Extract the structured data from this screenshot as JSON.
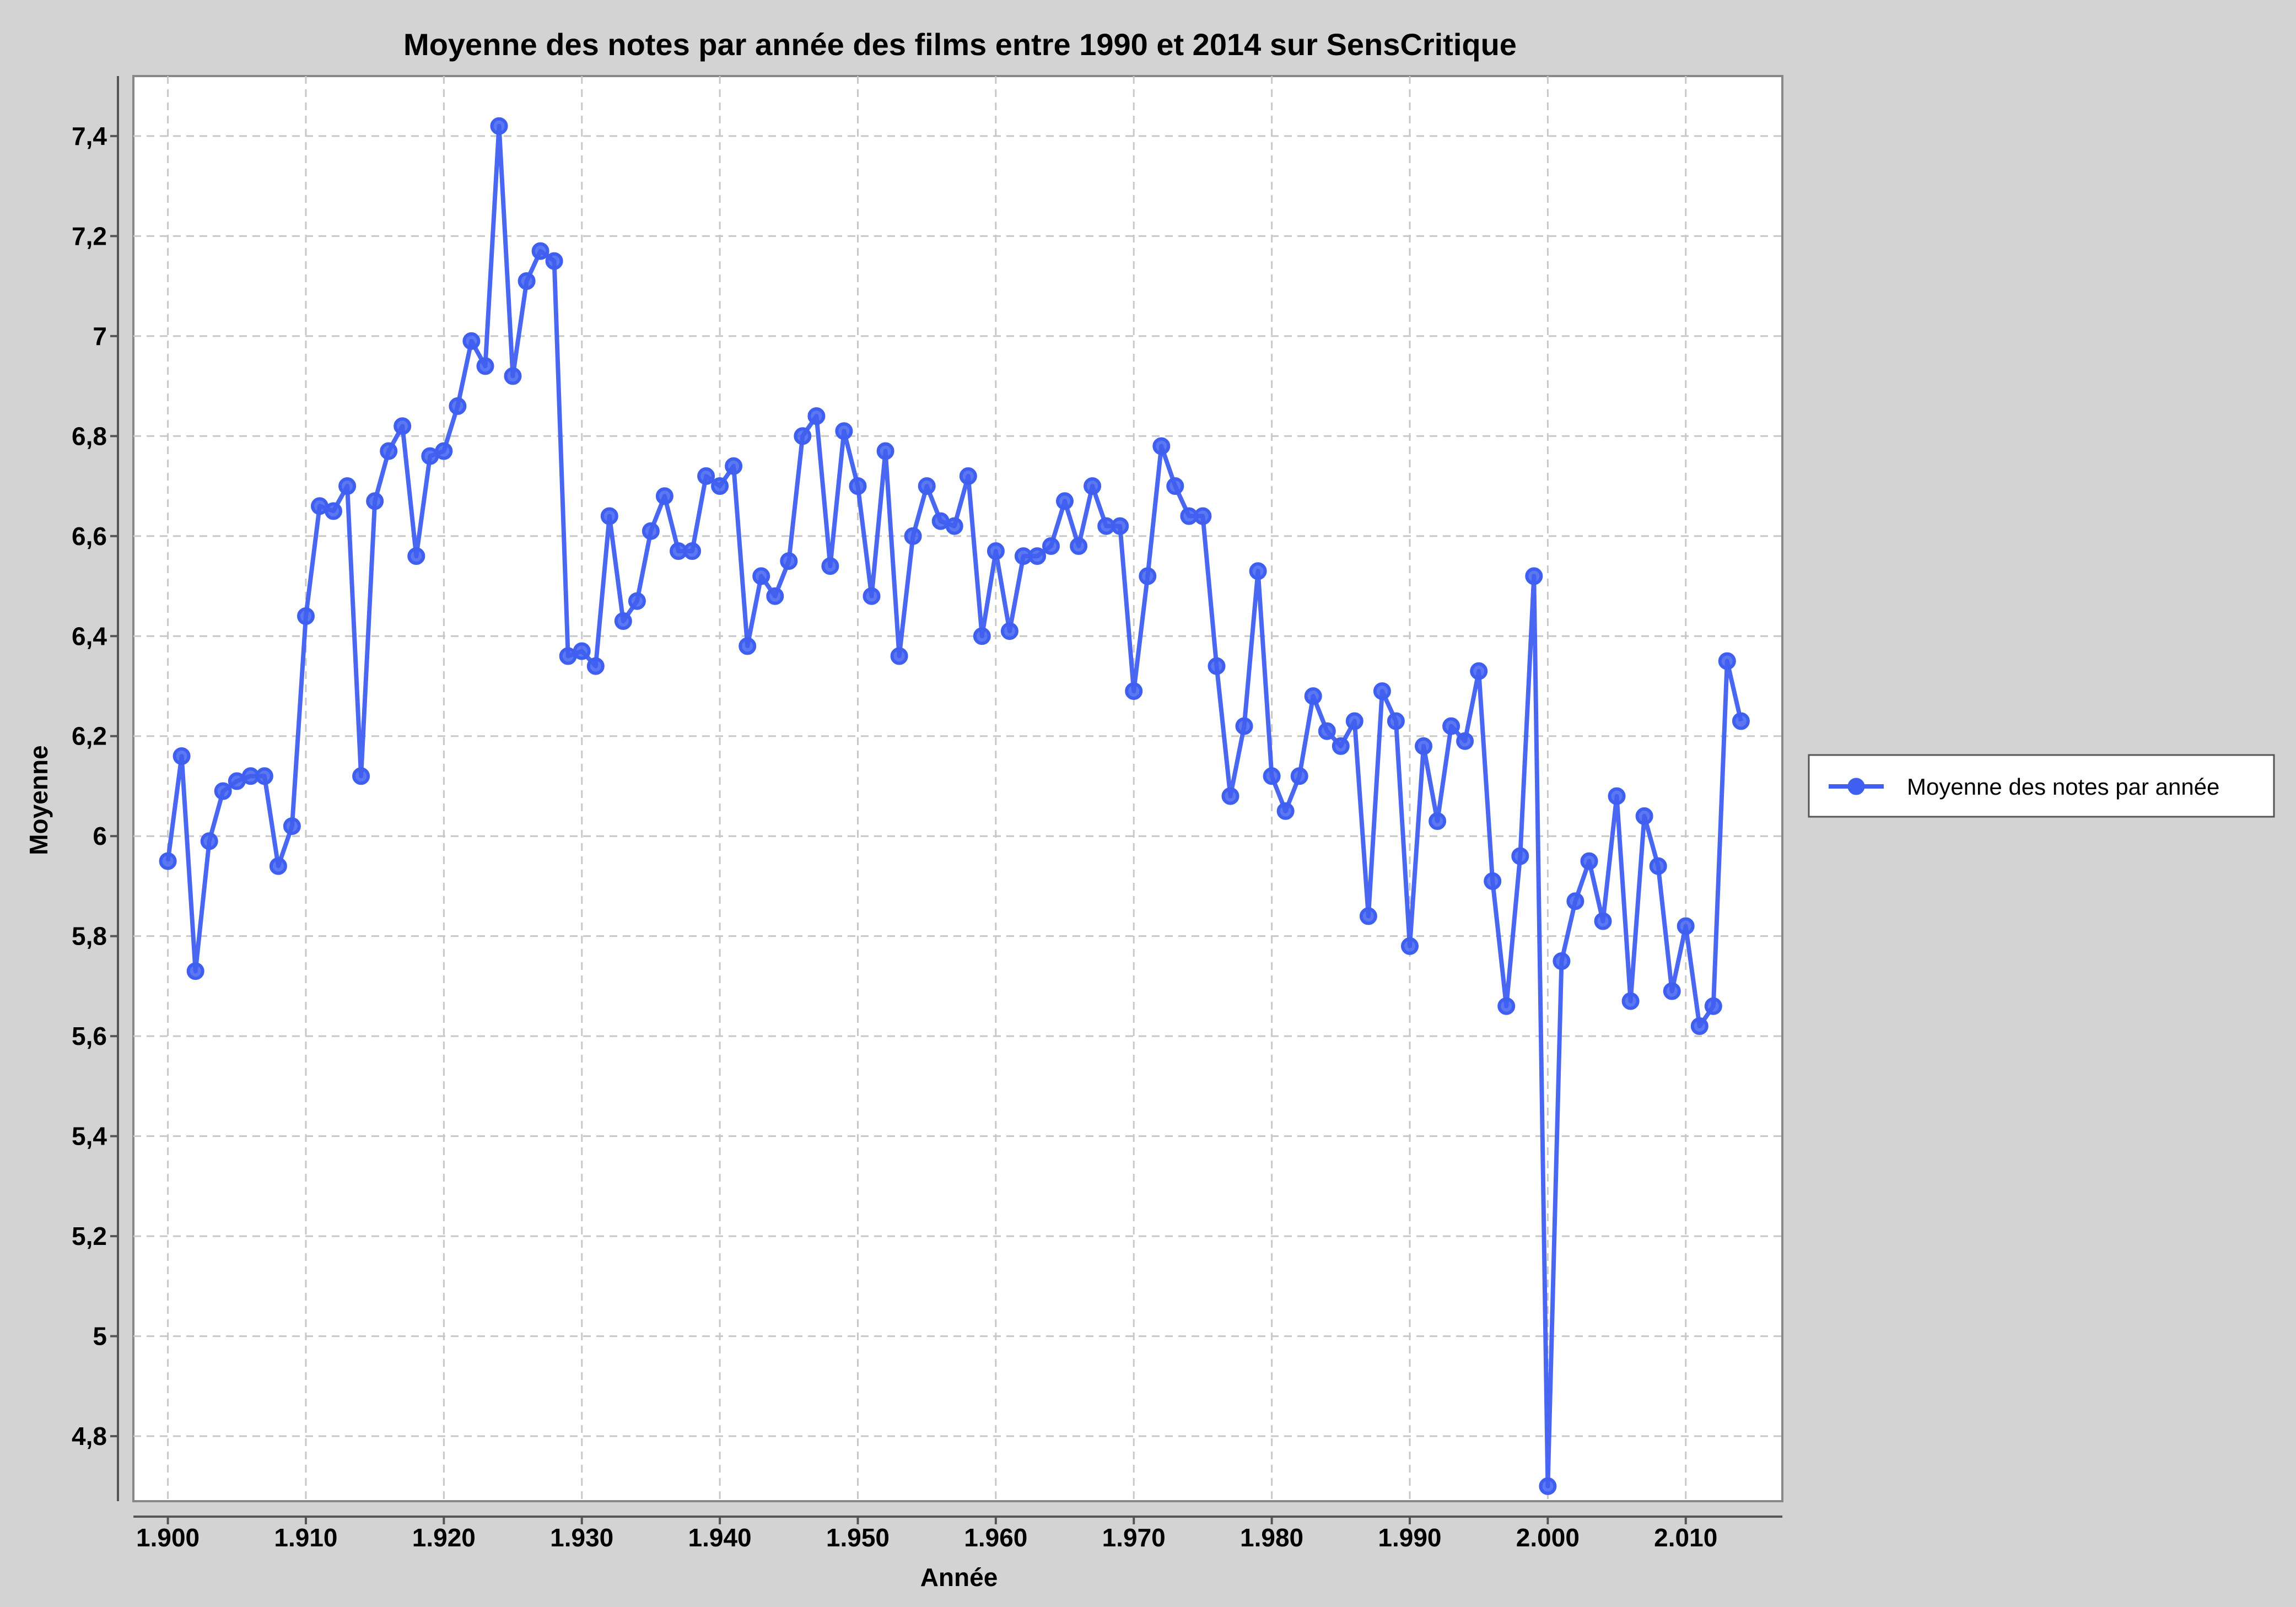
{
  "chart_data": {
    "type": "line",
    "title": "Moyenne des notes par année des films entre 1990 et 2014 sur SensCritique",
    "xlabel": "Année",
    "ylabel": "Moyenne",
    "xlim": [
      1897.5,
      2017
    ],
    "ylim": [
      4.67,
      7.52
    ],
    "grid": true,
    "legend_position": "right",
    "x_ticks": [
      1900,
      1910,
      1920,
      1930,
      1940,
      1950,
      1960,
      1970,
      1980,
      1990,
      2000,
      2010
    ],
    "x_tick_labels": [
      "1.900",
      "1.910",
      "1.920",
      "1.930",
      "1.940",
      "1.950",
      "1.960",
      "1.970",
      "1.980",
      "1.990",
      "2.000",
      "2.010"
    ],
    "y_ticks": [
      4.8,
      5.0,
      5.2,
      5.4,
      5.6,
      5.8,
      6.0,
      6.2,
      6.4,
      6.6,
      6.8,
      7.0,
      7.2,
      7.4
    ],
    "y_tick_labels": [
      "4,8",
      "5",
      "5,2",
      "5,4",
      "5,6",
      "5,8",
      "6",
      "6,2",
      "6,4",
      "6,6",
      "6,8",
      "7",
      "7,2",
      "7,4"
    ],
    "series": [
      {
        "name": "Moyenne des notes par année",
        "color": "#3f5ff0",
        "x": [
          1900,
          1901,
          1902,
          1903,
          1904,
          1905,
          1906,
          1907,
          1908,
          1909,
          1910,
          1911,
          1912,
          1913,
          1914,
          1915,
          1916,
          1917,
          1918,
          1919,
          1920,
          1921,
          1922,
          1923,
          1924,
          1925,
          1926,
          1927,
          1928,
          1929,
          1930,
          1931,
          1932,
          1933,
          1934,
          1935,
          1936,
          1937,
          1938,
          1939,
          1940,
          1941,
          1942,
          1943,
          1944,
          1945,
          1946,
          1947,
          1948,
          1949,
          1950,
          1951,
          1952,
          1953,
          1954,
          1955,
          1956,
          1957,
          1958,
          1959,
          1960,
          1961,
          1962,
          1963,
          1964,
          1965,
          1966,
          1967,
          1968,
          1969,
          1970,
          1971,
          1972,
          1973,
          1974,
          1975,
          1976,
          1977,
          1978,
          1979,
          1980,
          1981,
          1982,
          1983,
          1984,
          1985,
          1986,
          1987,
          1988,
          1989,
          1990,
          1991,
          1992,
          1993,
          1994,
          1995,
          1996,
          1997,
          1998,
          1999,
          2000,
          2001,
          2002,
          2003,
          2004,
          2005,
          2006,
          2007,
          2008,
          2009,
          2010,
          2011,
          2012,
          2013,
          2014
        ],
        "y": [
          5.95,
          6.16,
          5.73,
          5.99,
          6.09,
          6.11,
          6.12,
          6.12,
          5.94,
          6.02,
          6.44,
          6.66,
          6.65,
          6.7,
          6.12,
          6.67,
          6.77,
          6.82,
          6.56,
          6.76,
          6.77,
          6.86,
          6.99,
          6.94,
          7.42,
          6.92,
          7.11,
          7.17,
          7.15,
          6.36,
          6.37,
          6.34,
          6.64,
          6.43,
          6.47,
          6.61,
          6.68,
          6.57,
          6.57,
          6.72,
          6.7,
          6.74,
          6.38,
          6.52,
          6.48,
          6.55,
          6.8,
          6.84,
          6.54,
          6.81,
          6.7,
          6.48,
          6.77,
          6.36,
          6.6,
          6.7,
          6.63,
          6.62,
          6.72,
          6.4,
          6.57,
          6.41,
          6.56,
          6.56,
          6.58,
          6.67,
          6.58,
          6.7,
          6.62,
          6.62,
          6.29,
          6.52,
          6.78,
          6.7,
          6.64,
          6.64,
          6.34,
          6.08,
          6.22,
          6.53,
          6.12,
          6.05,
          6.12,
          6.28,
          6.21,
          6.18,
          6.23,
          5.84,
          6.29,
          6.23,
          5.78,
          6.18,
          6.03,
          6.22,
          6.19,
          6.33,
          5.91,
          5.66,
          5.96,
          6.52,
          4.7,
          5.75,
          5.87,
          5.95,
          5.83,
          6.08,
          5.67,
          6.04,
          5.94,
          5.69,
          5.82,
          5.62,
          5.66,
          6.35,
          6.23
        ]
      }
    ]
  }
}
